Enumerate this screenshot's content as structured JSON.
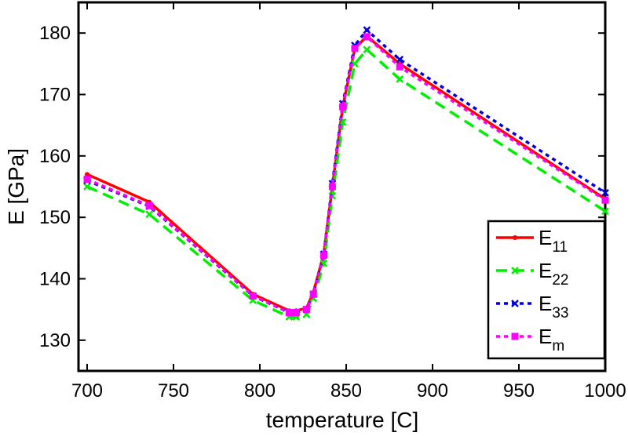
{
  "chart_data": {
    "type": "line",
    "title": "",
    "xlabel": "temperature [C]",
    "ylabel": "E [GPa]",
    "xlim": [
      695,
      1000
    ],
    "ylim": [
      125,
      185
    ],
    "xticks": [
      700,
      750,
      800,
      850,
      900,
      950,
      1000
    ],
    "yticks": [
      130,
      140,
      150,
      160,
      170,
      180
    ],
    "grid": false,
    "legend_position": "bottom-right",
    "x": [
      700,
      736,
      796,
      817,
      821,
      827,
      831,
      837,
      842,
      848,
      855,
      862,
      881,
      1000
    ],
    "series": [
      {
        "name": "E11",
        "label_main": "E",
        "label_sub": "11",
        "color": "#ff0000",
        "line_style": "solid",
        "marker": "dot",
        "values": [
          157.0,
          152.5,
          137.5,
          134.8,
          134.8,
          135.2,
          137.8,
          144.0,
          155.0,
          168.0,
          177.5,
          179.5,
          175.0,
          153.0
        ]
      },
      {
        "name": "E22",
        "label_main": "E",
        "label_sub": "22",
        "color": "#00ee00",
        "line_style": "dashed",
        "marker": "x",
        "values": [
          155.0,
          150.5,
          136.5,
          133.8,
          133.8,
          134.2,
          136.8,
          142.5,
          153.5,
          165.5,
          175.0,
          177.3,
          172.5,
          151.0
        ]
      },
      {
        "name": "E33",
        "label_main": "E",
        "label_sub": "33",
        "color": "#0000dd",
        "line_style": "dotted",
        "marker": "x",
        "values": [
          156.0,
          151.8,
          137.2,
          134.5,
          134.5,
          135.0,
          137.5,
          144.0,
          155.5,
          168.5,
          178.0,
          180.5,
          175.7,
          154.0
        ]
      },
      {
        "name": "Em",
        "label_main": "E",
        "label_sub": "m",
        "color": "#ff00ff",
        "line_style": "dotted",
        "marker": "square",
        "values": [
          156.2,
          151.9,
          137.2,
          134.5,
          134.5,
          135.0,
          137.5,
          143.8,
          155.0,
          168.0,
          177.5,
          179.4,
          174.5,
          152.8
        ]
      }
    ]
  }
}
